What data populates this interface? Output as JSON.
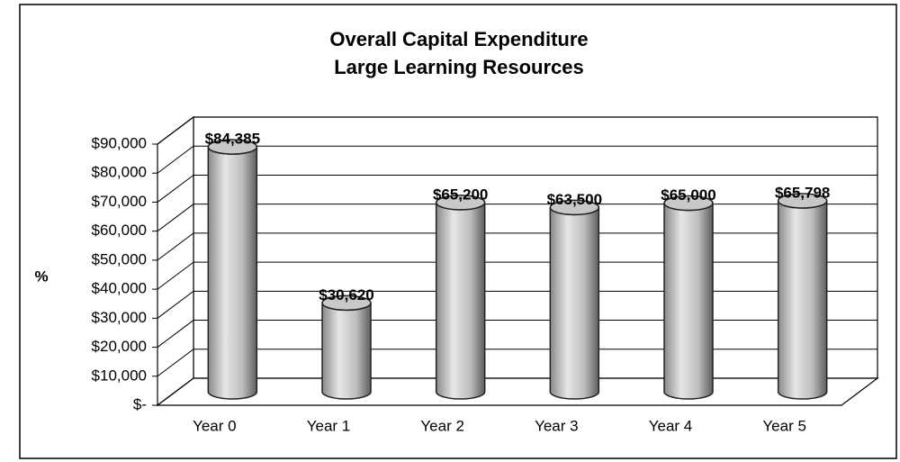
{
  "chart_data": {
    "type": "bar",
    "title": [
      "Overall Capital Expenditure",
      "Large Learning Resources"
    ],
    "y_label": "%",
    "categories": [
      "Year 0",
      "Year 1",
      "Year 2",
      "Year 3",
      "Year 4",
      "Year 5"
    ],
    "values": [
      84385,
      30620,
      65200,
      63500,
      65000,
      65798
    ],
    "value_labels": [
      "$84,385",
      "$30,620",
      "$65,200",
      "$63,500",
      "$65,000",
      "$65,798"
    ],
    "color": "#c8c8c8",
    "ylim": [
      0,
      90000
    ],
    "yticks": [
      {
        "value": 0,
        "label": "$-"
      },
      {
        "value": 10000,
        "label": "$10,000"
      },
      {
        "value": 20000,
        "label": "$20,000"
      },
      {
        "value": 30000,
        "label": "$30,000"
      },
      {
        "value": 40000,
        "label": "$40,000"
      },
      {
        "value": 50000,
        "label": "$50,000"
      },
      {
        "value": 60000,
        "label": "$60,000"
      },
      {
        "value": 70000,
        "label": "$70,000"
      },
      {
        "value": 80000,
        "label": "$80,000"
      },
      {
        "value": 90000,
        "label": "$90,000"
      }
    ],
    "grid": true
  }
}
